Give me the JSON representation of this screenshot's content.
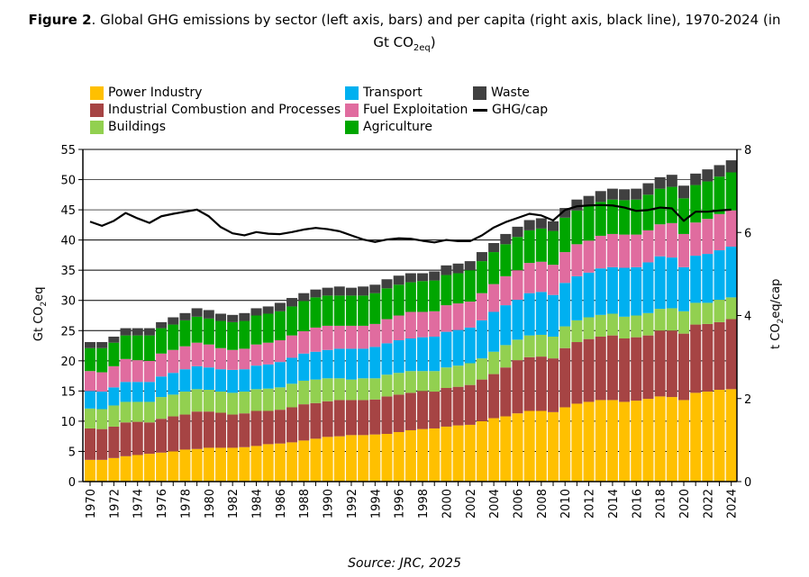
{
  "title": {
    "prefix": "Figure 2",
    "text": ". Global GHG emissions by sector (left axis, bars) and per capita (right axis, black line), 1970-2024 (in",
    "line2_main": "Gt CO",
    "line2_sub": "2eq",
    "line2_end": ")"
  },
  "source": "Source: JRC, 2025",
  "chart_data": {
    "type": "bar",
    "stacked": true,
    "x": [
      1970,
      1971,
      1972,
      1973,
      1974,
      1975,
      1976,
      1977,
      1978,
      1979,
      1980,
      1981,
      1982,
      1983,
      1984,
      1985,
      1986,
      1987,
      1988,
      1989,
      1990,
      1991,
      1992,
      1993,
      1994,
      1995,
      1996,
      1997,
      1998,
      1999,
      2000,
      2001,
      2002,
      2003,
      2004,
      2005,
      2006,
      2007,
      2008,
      2009,
      2010,
      2011,
      2012,
      2013,
      2014,
      2015,
      2016,
      2017,
      2018,
      2019,
      2020,
      2021,
      2022,
      2023,
      2024
    ],
    "xtick_labels": [
      "1970",
      "1972",
      "1974",
      "1976",
      "1978",
      "1980",
      "1982",
      "1984",
      "1986",
      "1988",
      "1990",
      "1992",
      "1994",
      "1996",
      "1998",
      "2000",
      "2002",
      "2004",
      "2006",
      "2008",
      "2010",
      "2012",
      "2014",
      "2016",
      "2018",
      "2020",
      "2022",
      "2024"
    ],
    "ylabel": "Gt CO2eq",
    "ylabel_main": "Gt CO",
    "ylabel_sub": "2",
    "ylabel_end": "eq",
    "ylim": [
      0,
      55
    ],
    "yticks": [
      0,
      5,
      10,
      15,
      20,
      25,
      30,
      35,
      40,
      45,
      50,
      55
    ],
    "y2label_main": "t CO",
    "y2label_sub": "2",
    "y2label_end": "eq/cap",
    "y2lim": [
      0,
      8
    ],
    "y2ticks": [
      0,
      2,
      4,
      6,
      8
    ],
    "grid": true,
    "legend_position": "top",
    "series": [
      {
        "name": "Power Industry",
        "color": "#FFC000",
        "values": [
          3.6,
          3.6,
          3.9,
          4.2,
          4.4,
          4.6,
          4.8,
          5.0,
          5.3,
          5.4,
          5.6,
          5.6,
          5.6,
          5.7,
          5.9,
          6.2,
          6.3,
          6.5,
          6.8,
          7.1,
          7.4,
          7.5,
          7.7,
          7.7,
          7.8,
          7.9,
          8.2,
          8.5,
          8.7,
          8.8,
          9.1,
          9.3,
          9.4,
          10.0,
          10.5,
          10.8,
          11.3,
          11.7,
          11.7,
          11.5,
          12.3,
          12.9,
          13.2,
          13.5,
          13.5,
          13.2,
          13.4,
          13.7,
          14.1,
          14.0,
          13.5,
          14.7,
          14.9,
          15.2,
          15.3
        ]
      },
      {
        "name": "Industrial Combustion and Processes",
        "color": "#A64444",
        "values": [
          5.2,
          5.1,
          5.2,
          5.6,
          5.5,
          5.2,
          5.6,
          5.8,
          5.8,
          6.2,
          6.0,
          5.8,
          5.5,
          5.6,
          5.8,
          5.5,
          5.6,
          5.8,
          6.0,
          5.9,
          5.9,
          6.0,
          5.8,
          5.8,
          5.8,
          6.2,
          6.2,
          6.2,
          6.3,
          6.1,
          6.4,
          6.4,
          6.6,
          6.9,
          7.3,
          8.1,
          8.8,
          8.9,
          9.0,
          8.9,
          9.8,
          10.2,
          10.4,
          10.5,
          10.7,
          10.5,
          10.5,
          10.5,
          10.9,
          11.0,
          11.0,
          11.3,
          11.2,
          11.2,
          11.6
        ]
      },
      {
        "name": "Buildings",
        "color": "#92D050",
        "values": [
          3.3,
          3.3,
          3.5,
          3.4,
          3.3,
          3.4,
          3.6,
          3.6,
          3.8,
          3.7,
          3.6,
          3.5,
          3.6,
          3.6,
          3.6,
          3.7,
          3.7,
          3.9,
          3.9,
          3.9,
          3.8,
          3.6,
          3.4,
          3.6,
          3.5,
          3.6,
          3.6,
          3.6,
          3.3,
          3.4,
          3.4,
          3.5,
          3.6,
          3.5,
          3.7,
          3.7,
          3.4,
          3.6,
          3.6,
          3.6,
          3.6,
          3.6,
          3.6,
          3.6,
          3.6,
          3.6,
          3.6,
          3.7,
          3.6,
          3.7,
          3.7,
          3.6,
          3.5,
          3.7,
          3.6
        ]
      },
      {
        "name": "Transport",
        "color": "#00B0F0",
        "values": [
          2.9,
          2.9,
          3.0,
          3.3,
          3.3,
          3.3,
          3.4,
          3.6,
          3.7,
          3.8,
          3.7,
          3.7,
          3.8,
          3.7,
          3.9,
          4.0,
          4.2,
          4.3,
          4.5,
          4.6,
          4.7,
          4.9,
          5.1,
          4.9,
          5.2,
          5.2,
          5.4,
          5.4,
          5.6,
          5.7,
          5.9,
          5.9,
          5.9,
          6.3,
          6.6,
          6.6,
          6.6,
          7.0,
          7.1,
          6.9,
          7.2,
          7.3,
          7.4,
          7.7,
          7.7,
          8.1,
          8.0,
          8.4,
          8.7,
          8.4,
          7.3,
          7.8,
          8.1,
          8.2,
          8.4
        ]
      },
      {
        "name": "Fuel Exploitation",
        "color": "#E06C9F",
        "values": [
          3.3,
          3.2,
          3.5,
          3.8,
          3.6,
          3.5,
          3.8,
          3.8,
          3.8,
          3.9,
          3.8,
          3.5,
          3.3,
          3.4,
          3.5,
          3.6,
          3.6,
          3.7,
          3.7,
          4.0,
          4.0,
          3.8,
          3.8,
          3.8,
          3.8,
          4.0,
          4.1,
          4.4,
          4.2,
          4.2,
          4.4,
          4.4,
          4.3,
          4.5,
          4.6,
          4.8,
          4.9,
          5.0,
          5.0,
          5.0,
          5.1,
          5.3,
          5.3,
          5.4,
          5.5,
          5.5,
          5.4,
          5.3,
          5.3,
          5.7,
          5.5,
          5.5,
          5.8,
          6.0,
          6.0
        ]
      },
      {
        "name": "Agriculture",
        "color": "#00A600",
        "values": [
          3.8,
          4.0,
          3.9,
          3.9,
          4.1,
          4.2,
          4.2,
          4.2,
          4.3,
          4.3,
          4.3,
          4.5,
          4.6,
          4.6,
          4.8,
          4.8,
          4.8,
          4.8,
          5.0,
          5.0,
          5.0,
          5.0,
          5.0,
          5.0,
          5.1,
          5.1,
          5.1,
          4.9,
          5.1,
          5.1,
          5.0,
          5.0,
          5.2,
          5.3,
          5.3,
          5.3,
          5.5,
          5.4,
          5.5,
          5.6,
          5.7,
          5.6,
          5.8,
          5.6,
          5.7,
          5.7,
          5.8,
          5.9,
          5.9,
          6.0,
          5.9,
          6.2,
          6.2,
          6.2,
          6.3
        ]
      },
      {
        "name": "Waste",
        "color": "#404040",
        "values": [
          1.0,
          1.0,
          1.0,
          1.2,
          1.2,
          1.2,
          1.0,
          1.2,
          1.2,
          1.4,
          1.4,
          1.2,
          1.2,
          1.3,
          1.2,
          1.2,
          1.4,
          1.4,
          1.3,
          1.3,
          1.3,
          1.5,
          1.3,
          1.5,
          1.4,
          1.5,
          1.5,
          1.5,
          1.3,
          1.5,
          1.6,
          1.6,
          1.5,
          1.5,
          1.5,
          1.7,
          1.7,
          1.7,
          1.7,
          1.6,
          1.6,
          1.8,
          1.6,
          1.8,
          1.8,
          1.8,
          1.8,
          1.9,
          1.9,
          2.0,
          2.1,
          1.9,
          2.0,
          1.9,
          2.0
        ]
      }
    ],
    "line": {
      "name": "GHG/cap",
      "axis": "right",
      "color": "#000000",
      "values": [
        6.26,
        6.16,
        6.28,
        6.47,
        6.34,
        6.23,
        6.39,
        6.45,
        6.5,
        6.55,
        6.39,
        6.13,
        5.98,
        5.93,
        6.01,
        5.97,
        5.96,
        6.01,
        6.07,
        6.11,
        6.08,
        6.03,
        5.93,
        5.83,
        5.77,
        5.83,
        5.86,
        5.85,
        5.8,
        5.76,
        5.82,
        5.79,
        5.79,
        5.93,
        6.12,
        6.25,
        6.35,
        6.45,
        6.41,
        6.29,
        6.54,
        6.63,
        6.65,
        6.66,
        6.65,
        6.6,
        6.52,
        6.54,
        6.6,
        6.58,
        6.28,
        6.5,
        6.5,
        6.53,
        6.55
      ]
    }
  }
}
